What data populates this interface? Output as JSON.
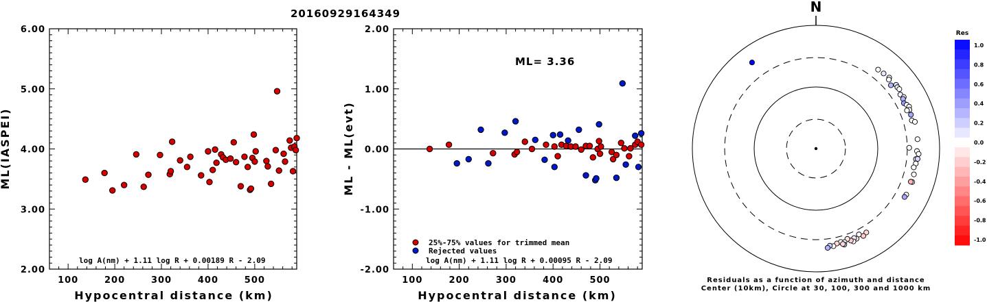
{
  "page_title": "20160929164349",
  "chart_data": [
    {
      "id": "ml-vs-distance",
      "type": "scatter",
      "title": "",
      "xlabel": "Hypocentral distance (km)",
      "ylabel": "ML(IASPEI)",
      "xlim": [
        60,
        590
      ],
      "ylim": [
        2.0,
        6.0
      ],
      "xticks": [
        "100",
        "200",
        "300",
        "400",
        "500"
      ],
      "yticks": [
        "2.00",
        "3.00",
        "4.00",
        "5.00",
        "6.00"
      ],
      "formula": "log A(nm) + 1.11 log R + 0.00189 R - 2.09",
      "series": [
        {
          "color": "#d40000",
          "points": [
            [
              137,
              3.49
            ],
            [
              178,
              3.6
            ],
            [
              195,
              3.31
            ],
            [
              220,
              3.4
            ],
            [
              246,
              3.91
            ],
            [
              262,
              3.37
            ],
            [
              272,
              3.57
            ],
            [
              297,
              3.9
            ],
            [
              318,
              3.58
            ],
            [
              320,
              3.63
            ],
            [
              323,
              4.12
            ],
            [
              340,
              3.81
            ],
            [
              355,
              3.7
            ],
            [
              362,
              3.87
            ],
            [
              385,
              3.56
            ],
            [
              400,
              3.96
            ],
            [
              403,
              3.45
            ],
            [
              410,
              3.65
            ],
            [
              415,
              3.99
            ],
            [
              418,
              3.77
            ],
            [
              428,
              3.91
            ],
            [
              432,
              3.86
            ],
            [
              438,
              3.82
            ],
            [
              448,
              3.84
            ],
            [
              455,
              4.11
            ],
            [
              460,
              3.78
            ],
            [
              470,
              3.38
            ],
            [
              478,
              3.87
            ],
            [
              485,
              3.7
            ],
            [
              490,
              3.32
            ],
            [
              492,
              3.34
            ],
            [
              495,
              3.85
            ],
            [
              498,
              4.24
            ],
            [
              500,
              3.79
            ],
            [
              502,
              3.96
            ],
            [
              525,
              3.8
            ],
            [
              528,
              3.71
            ],
            [
              535,
              3.42
            ],
            [
              545,
              3.98
            ],
            [
              548,
              4.96
            ],
            [
              552,
              3.64
            ],
            [
              562,
              3.92
            ],
            [
              565,
              3.79
            ],
            [
              575,
              4.14
            ],
            [
              578,
              4.02
            ],
            [
              582,
              3.63
            ],
            [
              585,
              4.04
            ],
            [
              588,
              3.98
            ],
            [
              590,
              4.18
            ]
          ]
        }
      ]
    },
    {
      "id": "residual-vs-distance",
      "type": "scatter",
      "title": "",
      "xlabel": "Hypocentral distance (km)",
      "ylabel": "ML - ML(evt)",
      "xlim": [
        60,
        590
      ],
      "ylim": [
        -2.0,
        2.0
      ],
      "xticks": [
        "100",
        "200",
        "300",
        "400",
        "500"
      ],
      "yticks": [
        "-2.00",
        "-1.00",
        "0.00",
        "1.00",
        "2.00"
      ],
      "annotation": "ML= 3.36",
      "formula": "log A(nm) + 1.11 log R + 0.00095 R - 2.09",
      "reference_line": 0,
      "legend": {
        "placement": "bottom-left",
        "entries": [
          {
            "label": "25%-75% values for trimmed mean",
            "color": "#d40000"
          },
          {
            "label": "Rejected values",
            "color": "#0018c8"
          }
        ]
      },
      "series": [
        {
          "name": "25%-75% values for trimmed mean",
          "color": "#d40000",
          "points": [
            [
              137,
              0.0
            ],
            [
              178,
              0.07
            ],
            [
              272,
              -0.07
            ],
            [
              318,
              -0.09
            ],
            [
              323,
              -0.05
            ],
            [
              340,
              0.12
            ],
            [
              355,
              0.0
            ],
            [
              385,
              0.07
            ],
            [
              403,
              0.04
            ],
            [
              410,
              -0.12
            ],
            [
              418,
              0.07
            ],
            [
              428,
              0.05
            ],
            [
              438,
              0.04
            ],
            [
              448,
              0.04
            ],
            [
              460,
              -0.01
            ],
            [
              470,
              0.05
            ],
            [
              478,
              0.05
            ],
            [
              485,
              -0.14
            ],
            [
              495,
              0.0
            ],
            [
              498,
              0.13
            ],
            [
              500,
              -0.08
            ],
            [
              502,
              0.04
            ],
            [
              525,
              -0.05
            ],
            [
              528,
              -0.17
            ],
            [
              535,
              -0.1
            ],
            [
              545,
              0.1
            ],
            [
              552,
              0.01
            ],
            [
              562,
              -0.12
            ],
            [
              565,
              0.01
            ],
            [
              575,
              0.07
            ],
            [
              580,
              0.12
            ],
            [
              588,
              0.07
            ]
          ]
        },
        {
          "name": "Rejected values",
          "color": "#0018c8",
          "points": [
            [
              195,
              -0.24
            ],
            [
              220,
              -0.17
            ],
            [
              246,
              0.32
            ],
            [
              262,
              -0.24
            ],
            [
              297,
              0.27
            ],
            [
              320,
              0.46
            ],
            [
              362,
              0.15
            ],
            [
              382,
              -0.18
            ],
            [
              400,
              0.23
            ],
            [
              403,
              -0.3
            ],
            [
              415,
              0.24
            ],
            [
              432,
              0.14
            ],
            [
              455,
              0.32
            ],
            [
              470,
              -0.44
            ],
            [
              490,
              -0.52
            ],
            [
              492,
              -0.49
            ],
            [
              498,
              0.41
            ],
            [
              535,
              -0.48
            ],
            [
              548,
              1.09
            ],
            [
              555,
              -0.26
            ],
            [
              575,
              0.22
            ],
            [
              582,
              -0.3
            ],
            [
              588,
              0.26
            ]
          ]
        }
      ]
    },
    {
      "id": "azimuth-residuals",
      "type": "scatter",
      "title": "",
      "north_label": "N",
      "caption_line1": "Residuals as a function of azimuth and distance",
      "caption_line2": "Center (10km), Circle at 30, 100, 300 and 1000 km",
      "rings_km": [
        30,
        100,
        300,
        1000
      ],
      "colorbar": {
        "title": "Res",
        "labels": [
          "1.0",
          "0.8",
          "0.6",
          "0.4",
          "0.2",
          "0.0",
          "-0.2",
          "-0.4",
          "-0.6",
          "-0.8",
          "-1.0"
        ],
        "max_color": "#0000ff",
        "zero_color": "#ffffff",
        "min_color": "#ff0000"
      },
      "points": [
        {
          "az": 323.5,
          "dist": 548,
          "res": 1.09
        },
        {
          "az": 38.1,
          "dist": 425,
          "res": 0.0
        },
        {
          "az": 41.9,
          "dist": 435,
          "res": 0.1
        },
        {
          "az": 45.8,
          "dist": 450,
          "res": 0.05
        },
        {
          "az": 46.5,
          "dist": 422,
          "res": 0.0
        },
        {
          "az": 51.4,
          "dist": 455,
          "res": 0.1
        },
        {
          "az": 52.9,
          "dist": 448,
          "res": 0.05
        },
        {
          "az": 49.7,
          "dist": 388,
          "res": 0.3
        },
        {
          "az": 54.4,
          "dist": 455,
          "res": 0.0
        },
        {
          "az": 57.3,
          "dist": 418,
          "res": 0.05
        },
        {
          "az": 59.5,
          "dist": 445,
          "res": 0.0
        },
        {
          "az": 60.2,
          "dist": 420,
          "res": 0.3
        },
        {
          "az": 62.6,
          "dist": 400,
          "res": 0.4
        },
        {
          "az": 64.2,
          "dist": 428,
          "res": 0.0
        },
        {
          "az": 65.7,
          "dist": 450,
          "res": 0.05
        },
        {
          "az": 67.4,
          "dist": 433,
          "res": 0.0
        },
        {
          "az": 67.2,
          "dist": 395,
          "res": 0.0
        },
        {
          "az": 70.3,
          "dist": 428,
          "res": 0.35
        },
        {
          "az": 73.6,
          "dist": 414,
          "res": 0.0
        },
        {
          "az": 74.8,
          "dist": 455,
          "res": 0.0
        },
        {
          "az": 84.7,
          "dist": 446,
          "res": 0.0
        },
        {
          "az": 89.5,
          "dist": 322,
          "res": 0.0
        },
        {
          "az": 91.4,
          "dist": 431,
          "res": 0.0
        },
        {
          "az": 93.0,
          "dist": 460,
          "res": 0.0
        },
        {
          "az": 96.0,
          "dist": 423,
          "res": 0.05
        },
        {
          "az": 95.8,
          "dist": 449,
          "res": 0.15
        },
        {
          "az": 98.5,
          "dist": 429,
          "res": 0.0
        },
        {
          "az": 100.9,
          "dist": 408,
          "res": 0.0
        },
        {
          "az": 104.8,
          "dist": 435,
          "res": 0.0
        },
        {
          "az": 109.2,
          "dist": 445,
          "res": 0.0
        },
        {
          "az": 109.3,
          "dist": 422,
          "res": -0.3
        },
        {
          "az": 117.1,
          "dist": 437,
          "res": 0.0
        },
        {
          "az": 118.7,
          "dist": 430,
          "res": 0.35
        },
        {
          "az": 149.1,
          "dist": 385,
          "res": -0.15
        },
        {
          "az": 151.6,
          "dist": 408,
          "res": -0.2
        },
        {
          "az": 153.5,
          "dist": 360,
          "res": 0.0
        },
        {
          "az": 155.8,
          "dist": 400,
          "res": -0.1
        },
        {
          "az": 157.0,
          "dist": 378,
          "res": 0.05
        },
        {
          "az": 158.1,
          "dist": 420,
          "res": 0.0
        },
        {
          "az": 159.3,
          "dist": 393,
          "res": -0.2
        },
        {
          "az": 160.9,
          "dist": 355,
          "res": -0.1
        },
        {
          "az": 163.1,
          "dist": 385,
          "res": 0.0
        },
        {
          "az": 163.6,
          "dist": 420,
          "res": 0.2
        },
        {
          "az": 165.2,
          "dist": 370,
          "res": 0.0
        },
        {
          "az": 164.3,
          "dist": 405,
          "res": -0.15
        },
        {
          "az": 167.6,
          "dist": 377,
          "res": -0.15
        },
        {
          "az": 169.9,
          "dist": 405,
          "res": 0.0
        },
        {
          "az": 171.9,
          "dist": 390,
          "res": 0.2
        },
        {
          "az": 173.3,
          "dist": 418,
          "res": 0.3
        }
      ]
    }
  ]
}
